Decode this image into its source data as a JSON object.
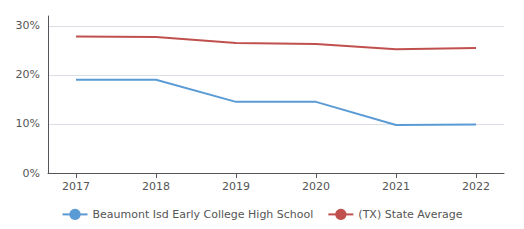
{
  "chart_data": {
    "type": "line",
    "x": [
      2017,
      2018,
      2019,
      2020,
      2021,
      2022
    ],
    "series": [
      {
        "name": "Beaumont Isd Early College High School",
        "color": "#5b9bd5",
        "values": [
          0.19,
          0.19,
          0.145,
          0.145,
          0.098,
          0.099
        ]
      },
      {
        "name": "(TX) State Average",
        "color": "#c0504d",
        "values": [
          0.278,
          0.277,
          0.265,
          0.263,
          0.252,
          0.255
        ]
      }
    ],
    "xlim": [
      2016.65,
      2022.35
    ],
    "xticks": [
      2017,
      2018,
      2019,
      2020,
      2021,
      2022
    ],
    "ylim": [
      0,
      0.32
    ],
    "yticks": [
      {
        "value": 0,
        "label": "0%"
      },
      {
        "value": 0.1,
        "label": "10%"
      },
      {
        "value": 0.2,
        "label": "20%"
      },
      {
        "value": 0.3,
        "label": "30%"
      }
    ],
    "grid": true,
    "legend": "bottom"
  }
}
